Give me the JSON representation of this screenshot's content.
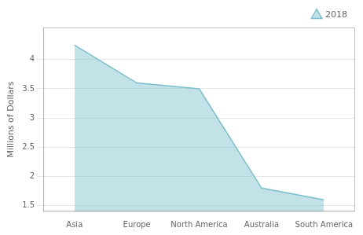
{
  "chart_data": {
    "type": "area",
    "categories": [
      "Asia",
      "Europe",
      "North America",
      "Australia",
      "South America"
    ],
    "series": [
      {
        "name": "2018",
        "color": "#7bbfcc",
        "values": [
          4.25,
          3.6,
          3.5,
          1.8,
          1.6
        ]
      }
    ],
    "y_label": "Millions of Dollars",
    "ylim": [
      1.4,
      4.55
    ],
    "yticks": [
      1.5,
      2,
      2.5,
      3,
      3.5,
      4
    ],
    "grid": true,
    "legend": "upper right"
  }
}
